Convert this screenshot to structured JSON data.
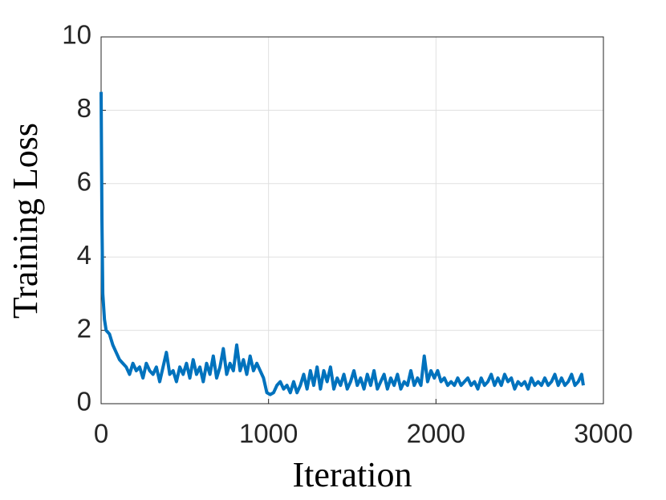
{
  "chart_data": {
    "type": "line",
    "x_label": "Iteration",
    "y_label": "Training Loss",
    "x": [
      0,
      5,
      10,
      20,
      30,
      50,
      70,
      90,
      110,
      130,
      150,
      170,
      190,
      210,
      230,
      250,
      270,
      290,
      310,
      330,
      350,
      370,
      390,
      410,
      430,
      450,
      470,
      490,
      510,
      530,
      550,
      570,
      590,
      610,
      630,
      650,
      670,
      690,
      710,
      730,
      750,
      770,
      790,
      810,
      830,
      850,
      870,
      890,
      910,
      930,
      950,
      970,
      990,
      1010,
      1030,
      1050,
      1070,
      1090,
      1110,
      1130,
      1150,
      1170,
      1190,
      1210,
      1230,
      1250,
      1270,
      1290,
      1310,
      1330,
      1350,
      1370,
      1390,
      1410,
      1430,
      1450,
      1470,
      1490,
      1510,
      1530,
      1550,
      1570,
      1590,
      1610,
      1630,
      1650,
      1670,
      1690,
      1710,
      1730,
      1750,
      1770,
      1790,
      1810,
      1830,
      1850,
      1870,
      1890,
      1910,
      1930,
      1950,
      1970,
      1990,
      2010,
      2030,
      2050,
      2070,
      2090,
      2110,
      2130,
      2150,
      2170,
      2190,
      2210,
      2230,
      2250,
      2270,
      2290,
      2310,
      2330,
      2350,
      2370,
      2390,
      2410,
      2430,
      2450,
      2470,
      2490,
      2510,
      2530,
      2550,
      2570,
      2590,
      2610,
      2630,
      2650,
      2670,
      2690,
      2710,
      2730,
      2750,
      2770,
      2790,
      2810,
      2830,
      2850,
      2870,
      2880
    ],
    "series": [
      {
        "color": "#0072bd",
        "values": [
          8.5,
          5.0,
          3.0,
          2.3,
          2.0,
          1.9,
          1.6,
          1.4,
          1.2,
          1.1,
          1.0,
          0.8,
          1.1,
          0.9,
          1.0,
          0.7,
          1.1,
          0.9,
          0.8,
          1.0,
          0.6,
          1.0,
          1.4,
          0.8,
          0.9,
          0.6,
          1.0,
          0.8,
          1.1,
          0.7,
          1.2,
          0.8,
          1.0,
          0.6,
          1.1,
          0.8,
          1.3,
          0.7,
          1.0,
          1.5,
          0.8,
          1.1,
          0.9,
          1.6,
          0.9,
          1.2,
          0.8,
          1.3,
          0.9,
          1.1,
          0.9,
          0.7,
          0.3,
          0.25,
          0.3,
          0.5,
          0.6,
          0.4,
          0.5,
          0.3,
          0.6,
          0.3,
          0.5,
          0.8,
          0.4,
          0.9,
          0.5,
          1.0,
          0.4,
          0.9,
          0.6,
          1.0,
          0.4,
          0.7,
          0.5,
          0.8,
          0.4,
          0.6,
          0.9,
          0.5,
          0.7,
          0.4,
          0.8,
          0.5,
          0.9,
          0.4,
          0.6,
          0.8,
          0.4,
          0.7,
          0.5,
          0.8,
          0.4,
          0.6,
          0.5,
          0.9,
          0.5,
          0.7,
          0.5,
          1.3,
          0.6,
          0.9,
          0.7,
          0.9,
          0.6,
          0.7,
          0.5,
          0.6,
          0.5,
          0.7,
          0.5,
          0.6,
          0.7,
          0.5,
          0.6,
          0.4,
          0.7,
          0.5,
          0.6,
          0.8,
          0.5,
          0.7,
          0.5,
          0.8,
          0.6,
          0.7,
          0.4,
          0.6,
          0.5,
          0.6,
          0.4,
          0.7,
          0.5,
          0.6,
          0.5,
          0.7,
          0.5,
          0.6,
          0.8,
          0.5,
          0.7,
          0.5,
          0.6,
          0.8,
          0.5,
          0.6,
          0.8,
          0.5
        ]
      }
    ],
    "xlim": [
      0,
      3000
    ],
    "xticks": [
      0,
      1000,
      2000,
      3000
    ],
    "ylim": [
      0,
      10
    ],
    "yticks": [
      0,
      2,
      4,
      6,
      8,
      10
    ],
    "grid": true
  }
}
